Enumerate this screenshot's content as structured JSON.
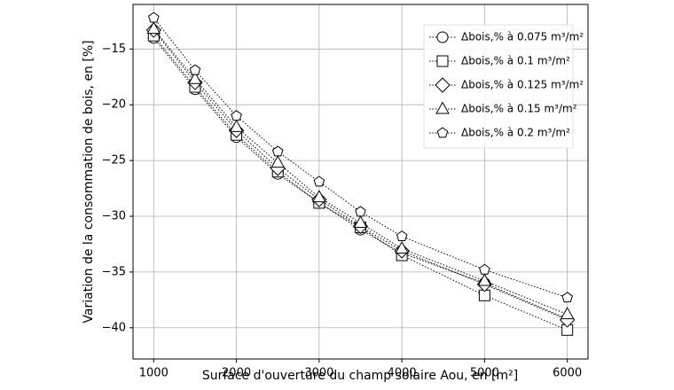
{
  "chart_data": {
    "type": "line",
    "x_label": "Surface d'ouverture du champ solaire Aou, en [m²]",
    "y_label": "Variation de la consommation de bois, en [%]",
    "x": [
      1000,
      1500,
      2000,
      2500,
      3000,
      3500,
      4000,
      5000,
      6000
    ],
    "xlim": [
      750,
      6250
    ],
    "xticks": [
      1000,
      2000,
      3000,
      4000,
      5000,
      6000
    ],
    "ylim": [
      -42.8,
      -11.0
    ],
    "yticks": [
      {
        "value": -40,
        "label": "−40"
      },
      {
        "value": -35,
        "label": "−35"
      },
      {
        "value": -30,
        "label": "−30"
      },
      {
        "value": -25,
        "label": "−25"
      },
      {
        "value": -20,
        "label": "−20"
      },
      {
        "value": -15,
        "label": "−15"
      }
    ],
    "grid": true,
    "legend": "upper right",
    "series": [
      {
        "name": "Δbois,% à 0.075 m³/m²",
        "color": "#000000",
        "marker": "circle",
        "values": [
          -14.0,
          -18.6,
          -22.9,
          -26.2,
          -28.8,
          -31.2,
          -33.3,
          -36.0,
          -39.2
        ]
      },
      {
        "name": "Δbois,% à 0.1 m³/m²",
        "color": "#000000",
        "marker": "square",
        "values": [
          -13.8,
          -18.4,
          -22.7,
          -26.0,
          -28.8,
          -31.0,
          -33.5,
          -37.1,
          -40.2
        ]
      },
      {
        "name": "Δbois,% à 0.125 m³/m²",
        "color": "#000000",
        "marker": "diamond",
        "values": [
          -13.3,
          -18.0,
          -22.3,
          -25.7,
          -28.5,
          -30.9,
          -33.1,
          -36.1,
          -39.3
        ]
      },
      {
        "name": "Δbois,% à 0.15 m³/m²",
        "color": "#000000",
        "marker": "triangle",
        "values": [
          -13.2,
          -17.7,
          -22.0,
          -25.2,
          -28.3,
          -30.6,
          -32.9,
          -35.8,
          -38.8
        ]
      },
      {
        "name": "Δbois,% à 0.2 m³/m²",
        "color": "#000000",
        "marker": "pentagon",
        "values": [
          -12.2,
          -16.9,
          -21.0,
          -24.2,
          -26.9,
          -29.6,
          -31.8,
          -34.8,
          -37.3
        ]
      }
    ]
  }
}
